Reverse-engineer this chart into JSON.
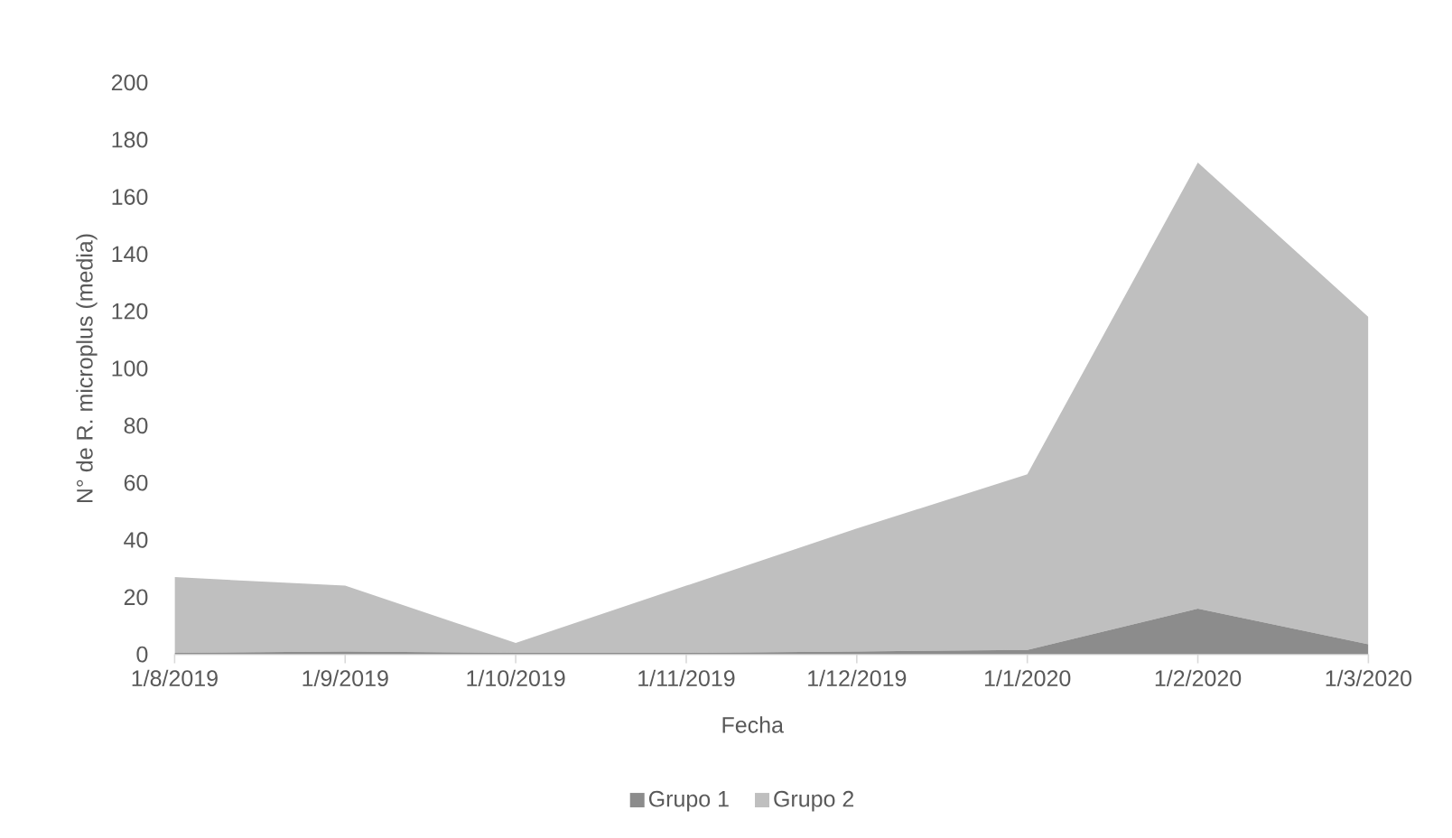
{
  "chart_data": {
    "type": "area",
    "stacked": true,
    "xlabel": "Fecha",
    "ylabel": "N° de R. microplus (media)",
    "categories": [
      "1/8/2019",
      "1/9/2019",
      "1/10/2019",
      "1/11/2019",
      "1/12/2019",
      "1/1/2020",
      "1/2/2020",
      "1/3/2020"
    ],
    "series": [
      {
        "name": "Grupo 1",
        "color": "#8c8c8c",
        "values": [
          0.5,
          1,
          0.5,
          0.5,
          1,
          1.5,
          16,
          3.5
        ]
      },
      {
        "name": "Grupo 2",
        "color": "#bfbfbf",
        "values": [
          26.5,
          23,
          3.5,
          23.5,
          43,
          61.5,
          156,
          114.5
        ]
      }
    ],
    "ylim": [
      0,
      200
    ],
    "yticks": [
      0,
      20,
      40,
      60,
      80,
      100,
      120,
      140,
      160,
      180,
      200
    ],
    "legend": "bottom"
  }
}
